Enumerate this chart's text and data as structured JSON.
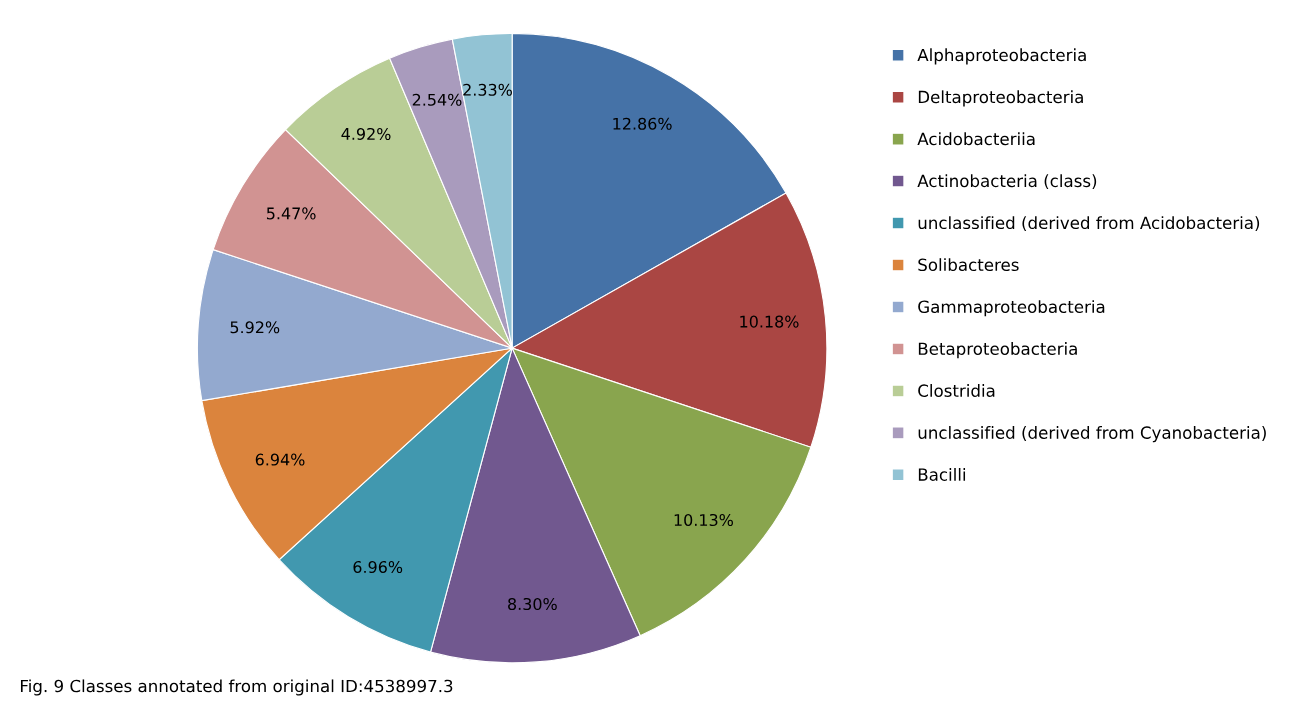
{
  "chart_data": {
    "type": "pie",
    "categories": [
      "Alphaproteobacteria",
      "Deltaproteobacteria",
      "Acidobacteriia",
      "Actinobacteria (class)",
      "unclassified (derived from Acidobacteria)",
      "Solibacteres",
      "Gammaproteobacteria",
      "Betaproteobacteria",
      "Clostridia",
      "unclassified (derived from Cyanobacteria)",
      "Bacilli"
    ],
    "values": [
      12.86,
      10.18,
      10.13,
      8.3,
      6.96,
      6.94,
      5.92,
      5.47,
      4.92,
      2.54,
      2.33
    ],
    "value_labels": [
      "12.86%",
      "10.18%",
      "10.13%",
      "8.30%",
      "6.96%",
      "6.94%",
      "5.92%",
      "5.47%",
      "4.92%",
      "2.54%",
      "2.33%"
    ],
    "colors": [
      "#4572a7",
      "#aa4643",
      "#89a54e",
      "#71588f",
      "#4198af",
      "#db843d",
      "#93a9cf",
      "#d19392",
      "#b9cd96",
      "#a99bbd",
      "#92c3d4"
    ],
    "legend": "right",
    "annotations": [
      "Fig. 9 Classes annotated from original ID:4538997.3"
    ]
  }
}
